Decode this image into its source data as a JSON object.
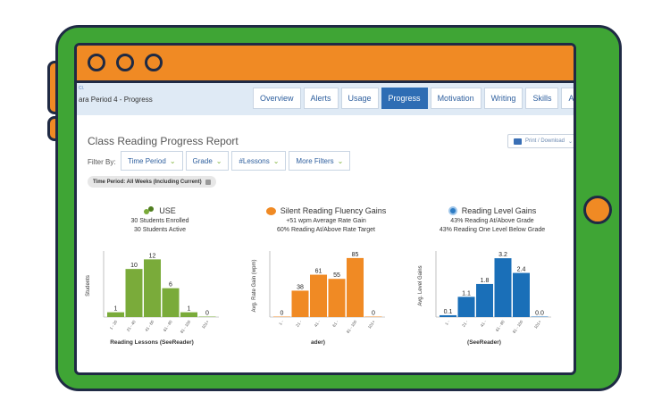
{
  "app": {
    "crumb": "Cl.",
    "class_name": "ara Period 4 - Progress"
  },
  "tabs": [
    {
      "label": "Overview",
      "active": false
    },
    {
      "label": "Alerts",
      "active": false
    },
    {
      "label": "Usage",
      "active": false
    },
    {
      "label": "Progress",
      "active": true
    },
    {
      "label": "Motivation",
      "active": false
    },
    {
      "label": "Writing",
      "active": false
    },
    {
      "label": "Skills",
      "active": false
    },
    {
      "label": "Assessment",
      "active": false
    }
  ],
  "report": {
    "title": "Class Reading Progress Report",
    "print_label": "Print / Download",
    "filter_label": "Filter By:",
    "filters": [
      "Time Period",
      "Grade",
      "#Lessons",
      "More Filters"
    ],
    "time_badge": "Time Period: All Weeks (Including Current)"
  },
  "colors": {
    "frame": "#3fa535",
    "accent": "#f08a24",
    "active_tab": "#2e6db4"
  },
  "chart_data": [
    {
      "type": "bar",
      "title": "USE",
      "subtitles": [
        "30 Students Enrolled",
        "30 Students Active"
      ],
      "categories": [
        "1 - 20",
        "21 - 40",
        "41 - 60",
        "61 - 80",
        "81 - 100",
        "101+"
      ],
      "values": [
        1,
        10,
        12,
        6,
        1,
        0
      ],
      "value_labels": [
        "1",
        "10",
        "12",
        "6",
        "1",
        "0"
      ],
      "ylabel": "Students",
      "xlabel": "Reading Lessons (SeeReader)",
      "ylim": [
        0,
        13
      ],
      "color": "#7aab3a"
    },
    {
      "type": "bar",
      "title": "Silent Reading Fluency Gains",
      "subtitles": [
        "+51 wpm Average Rate Gain",
        "60% Reading At/Above Rate Target"
      ],
      "categories": [
        "1 - ",
        "21 - ",
        "41 - ",
        "61 - ",
        "81 - 100",
        "101+"
      ],
      "values": [
        0,
        38,
        61,
        55,
        85,
        0
      ],
      "value_labels": [
        "0",
        "38",
        "61",
        "55",
        "85",
        "0"
      ],
      "ylabel": "Avg. Rate Gain (wpm)",
      "xlabel": "ader)",
      "ylim": [
        0,
        90
      ],
      "color": "#f08a24"
    },
    {
      "type": "bar",
      "title": "Reading Level Gains",
      "subtitles": [
        "43% Reading At/Above Grade",
        "43% Reading One Level Below Grade"
      ],
      "categories": [
        "1 - ",
        "21 - ",
        "41 - ",
        "61 - 80",
        "81 - 100",
        "101+"
      ],
      "values": [
        0.1,
        1.1,
        1.8,
        3.2,
        2.4,
        0.0
      ],
      "value_labels": [
        "0.1",
        "1.1",
        "1.8",
        "3.2",
        "2.4",
        "0.0"
      ],
      "ylabel": "Avg. Level Gains",
      "xlabel": "(SeeReader)",
      "ylim": [
        0,
        3.4
      ],
      "color": "#1a6fb8"
    }
  ]
}
